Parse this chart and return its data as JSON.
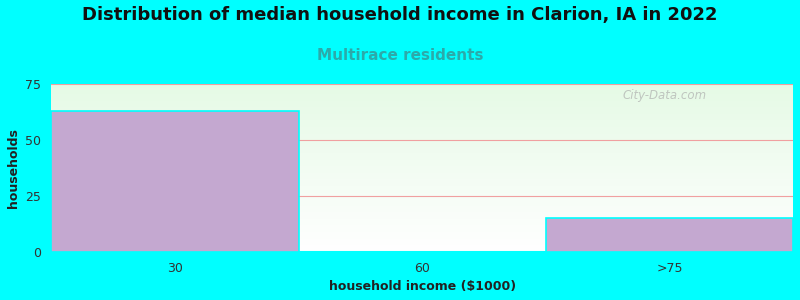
{
  "title": "Distribution of median household income in Clarion, IA in 2022",
  "subtitle": "Multirace residents",
  "xlabel": "household income ($1000)",
  "ylabel": "households",
  "categories": [
    "30",
    "60",
    ">75"
  ],
  "values": [
    63,
    0,
    15
  ],
  "bar_color": "#C4A8D0",
  "bar_edgecolor": "#00FFFF",
  "ylim": [
    0,
    75
  ],
  "yticks": [
    0,
    25,
    50,
    75
  ],
  "bg_color": "#00FFFF",
  "title_fontsize": 13,
  "subtitle_fontsize": 11,
  "subtitle_color": "#2BAAAA",
  "axis_label_fontsize": 9,
  "tick_fontsize": 9,
  "watermark": "City-Data.com",
  "grid_color": "#F0A0A0",
  "grid_linewidth": 0.8,
  "bar_width": 1.0,
  "n_bars": 3
}
